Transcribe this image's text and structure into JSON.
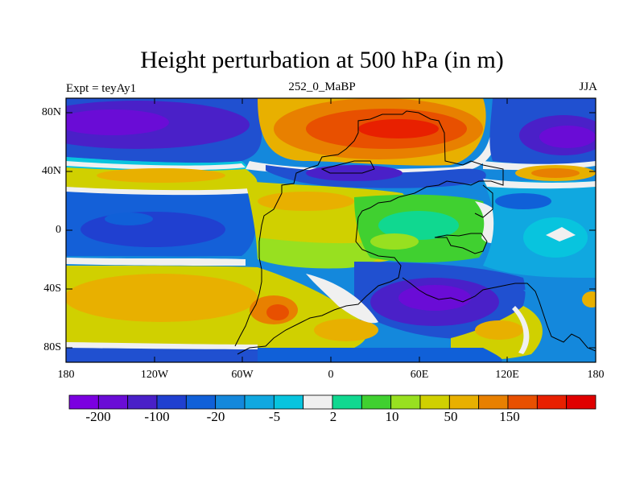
{
  "title": "Height perturbation at 500 hPa (in m)",
  "subtitle_left": "Expt = teyAy1",
  "subtitle_center": "252_0_MaBP",
  "subtitle_right": "JJA",
  "lat_ticks": [
    "80N",
    "40N",
    "0",
    "40S",
    "80S"
  ],
  "lon_ticks": [
    "180",
    "120W",
    "60W",
    "0",
    "60E",
    "120E",
    "180"
  ],
  "colorbar": {
    "colors": [
      "#7b00e0",
      "#6a0cd6",
      "#4a20c8",
      "#2040d0",
      "#1060d8",
      "#1488dc",
      "#10a8e0",
      "#08c4de",
      "#f0f0f0",
      "#10d890",
      "#40d030",
      "#98e020",
      "#d0d000",
      "#e8b000",
      "#e88000",
      "#e85000",
      "#e82000",
      "#e00000"
    ],
    "labels": [
      "-200",
      "-100",
      "-20",
      "-5",
      "2",
      "10",
      "50",
      "150"
    ]
  }
}
